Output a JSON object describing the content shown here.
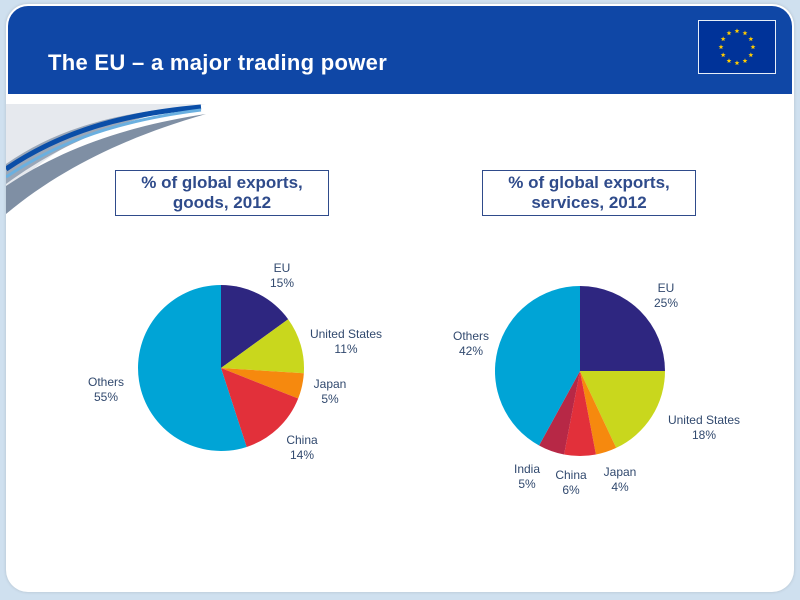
{
  "slide": {
    "title": "The EU – a major trading power"
  },
  "colors": {
    "header_blue": "#0f47a6",
    "eu": "#2e2680",
    "united_states": "#c9d71d",
    "japan": "#f6890e",
    "china": "#e2303a",
    "india": "#b72846",
    "others": "#00a4d6"
  },
  "chart_data": [
    {
      "type": "pie",
      "title": "% of global exports,\ngoods, 2012",
      "categories": [
        "EU",
        "United States",
        "Japan",
        "China",
        "Others"
      ],
      "values": [
        15,
        11,
        5,
        14,
        55
      ],
      "labels": [
        "15%",
        "11%",
        "5%",
        "14%",
        "55%"
      ]
    },
    {
      "type": "pie",
      "title": "% of global exports,\nservices, 2012",
      "categories": [
        "EU",
        "United States",
        "Japan",
        "China",
        "India",
        "Others"
      ],
      "values": [
        25,
        18,
        4,
        6,
        5,
        42
      ],
      "labels": [
        "25%",
        "18%",
        "4%",
        "6%",
        "5%",
        "42%"
      ]
    }
  ]
}
